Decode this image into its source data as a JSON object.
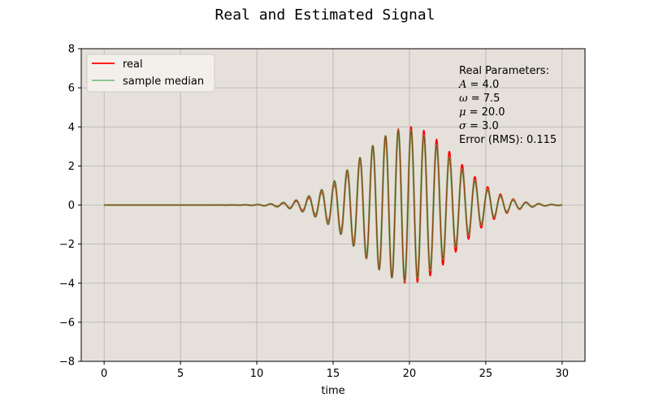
{
  "chart_data": {
    "type": "line",
    "title": "Real and Estimated Signal",
    "xlabel": "time",
    "ylabel": "",
    "xlim": [
      -1.5,
      31.5
    ],
    "ylim": [
      -8,
      8
    ],
    "xticks": [
      0,
      5,
      10,
      15,
      20,
      25,
      30
    ],
    "yticks": [
      -8,
      -6,
      -4,
      -2,
      0,
      2,
      4,
      6,
      8
    ],
    "grid": true,
    "legend_position": "top-left",
    "x_range": [
      0,
      30
    ],
    "series": [
      {
        "name": "real",
        "color": "#ff0000",
        "formula": "A * exp(-(t - mu)^2 / (2 * sigma^2)) * cos(omega * t)",
        "params": {
          "A": 4.0,
          "omega": 7.5,
          "mu": 20.0,
          "sigma": 3.0
        }
      },
      {
        "name": "sample median",
        "color": "#7fbf7f",
        "formula": "A * exp(-(t - mu)^2 / (2 * sigma^2)) * cos(omega * t)",
        "params": {
          "A": 3.85,
          "omega": 7.5,
          "mu": 19.7,
          "sigma": 3.05
        }
      }
    ],
    "annotation": {
      "heading": "Real Parameters:",
      "params": [
        {
          "symbol": "A",
          "value": "= 4.0"
        },
        {
          "symbol": "ω",
          "value": "= 7.5"
        },
        {
          "symbol": "μ",
          "value": "= 20.0"
        },
        {
          "symbol": "σ",
          "value": "= 3.0"
        }
      ],
      "error": "Error (RMS): 0.115"
    },
    "colors": {
      "plot_background": "#e6e0db",
      "grid": "#b0b0b0",
      "overlap_line": "#8b3a0a"
    }
  }
}
